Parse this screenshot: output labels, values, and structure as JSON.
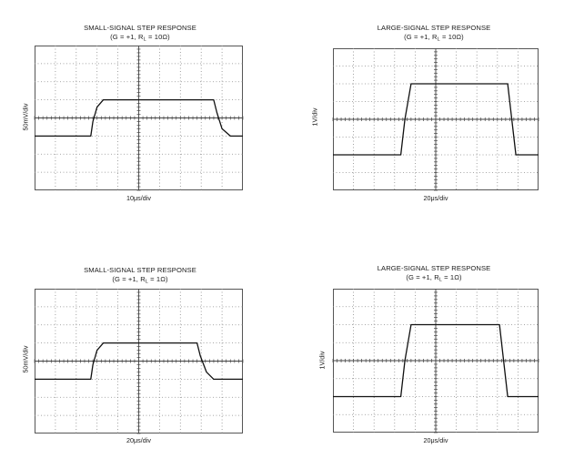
{
  "chart_data": [
    {
      "type": "line",
      "title": "SMALL-SIGNAL STEP RESPONSE",
      "subtitle": {
        "pre": "(G = +1, R",
        "sub": "L",
        "post": " = 10Ω)"
      },
      "xlabel": "10μs/div",
      "ylabel": "50mV/div",
      "grid": true,
      "xlim": [
        0,
        10
      ],
      "ylim": [
        -4,
        4
      ],
      "series": [
        {
          "x": [
            0,
            2.7,
            2.8,
            3.0,
            3.3,
            8.6,
            8.75,
            9.0,
            9.4,
            10
          ],
          "y": [
            -1,
            -1,
            -0.2,
            0.6,
            1,
            1,
            0.3,
            -0.6,
            -1,
            -1
          ]
        }
      ]
    },
    {
      "type": "line",
      "title": "LARGE-SIGNAL STEP RESPONSE",
      "subtitle": {
        "pre": "(G = +1, R",
        "sub": "L",
        "post": " = 10Ω)"
      },
      "xlabel": "20μs/div",
      "ylabel": "1V/div",
      "grid": true,
      "xlim": [
        0,
        10
      ],
      "ylim": [
        -4,
        4
      ],
      "series": [
        {
          "x": [
            0,
            3.3,
            3.5,
            3.8,
            8.5,
            8.7,
            8.9,
            10
          ],
          "y": [
            -2,
            -2,
            0,
            2,
            2,
            0,
            -2,
            -2
          ]
        }
      ]
    },
    {
      "type": "line",
      "title": "SMALL-SIGNAL STEP RESPONSE",
      "subtitle": {
        "pre": "(G = +1, R",
        "sub": "L",
        "post": " = 1Ω)"
      },
      "xlabel": "20μs/div",
      "ylabel": "50mV/div",
      "grid": true,
      "xlim": [
        0,
        10
      ],
      "ylim": [
        -4,
        4
      ],
      "series": [
        {
          "x": [
            0,
            2.7,
            2.8,
            3.0,
            3.3,
            7.8,
            7.95,
            8.25,
            8.6,
            10
          ],
          "y": [
            -1,
            -1,
            -0.2,
            0.6,
            1,
            1,
            0.3,
            -0.6,
            -1,
            -1
          ]
        }
      ]
    },
    {
      "type": "line",
      "title": "LARGE-SIGNAL STEP RESPONSE",
      "subtitle": {
        "pre": "(G = +1, R",
        "sub": "L",
        "post": " = 1Ω)"
      },
      "xlabel": "20μs/div",
      "ylabel": "1V/div",
      "grid": true,
      "xlim": [
        0,
        10
      ],
      "ylim": [
        -4,
        4
      ],
      "series": [
        {
          "x": [
            0,
            3.3,
            3.5,
            3.8,
            8.1,
            8.3,
            8.5,
            10
          ],
          "y": [
            -2,
            -2,
            0,
            2,
            2,
            0,
            -2,
            -2
          ]
        }
      ]
    }
  ]
}
